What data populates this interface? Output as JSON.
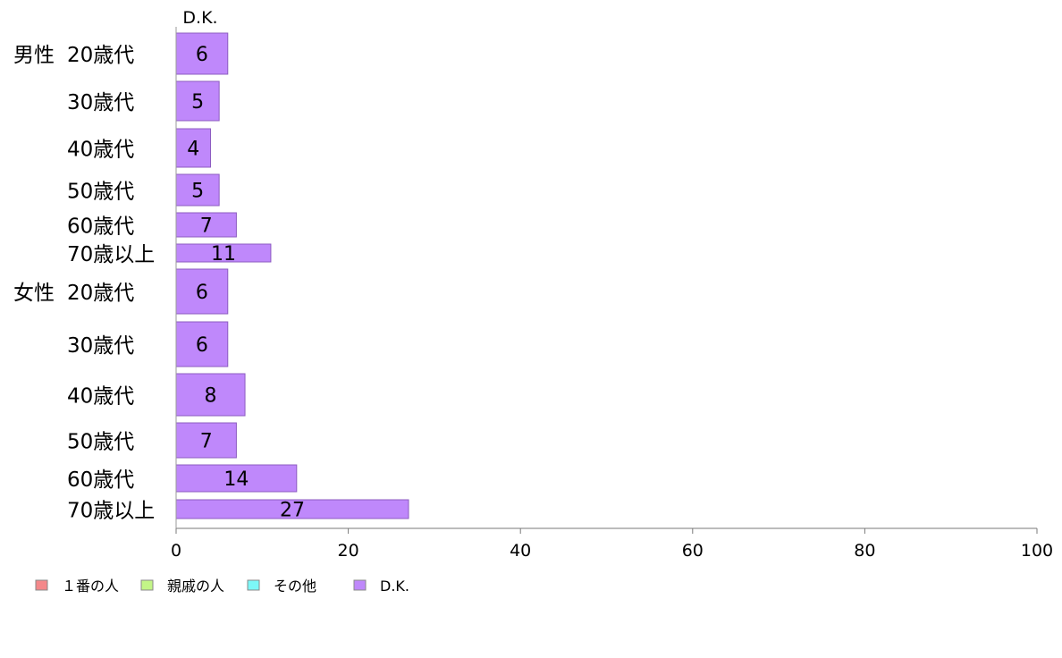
{
  "chart_data": {
    "type": "bar",
    "orientation": "horizontal",
    "stacked": true,
    "title": "D.K.",
    "groups": [
      {
        "label": "男性",
        "categories": [
          "20歳代",
          "30歳代",
          "40歳代",
          "50歳代",
          "60歳代",
          "70歳以上"
        ]
      },
      {
        "label": "女性",
        "categories": [
          "20歳代",
          "30歳代",
          "40歳代",
          "50歳代",
          "60歳代",
          "70歳以上"
        ]
      }
    ],
    "categories": [
      "20歳代",
      "30歳代",
      "40歳代",
      "50歳代",
      "60歳代",
      "70歳以上",
      "20歳代",
      "30歳代",
      "40歳代",
      "50歳代",
      "60歳代",
      "70歳以上"
    ],
    "series": [
      {
        "name": "１番の人",
        "color": "#f4888a",
        "values": [
          0,
          0,
          0,
          0,
          0,
          0,
          0,
          0,
          0,
          0,
          0,
          0
        ]
      },
      {
        "name": "親戚の人",
        "color": "#c3f587",
        "values": [
          0,
          0,
          0,
          0,
          0,
          0,
          0,
          0,
          0,
          0,
          0,
          0
        ]
      },
      {
        "name": "その他",
        "color": "#7cf7f7",
        "values": [
          0,
          0,
          0,
          0,
          0,
          0,
          0,
          0,
          0,
          0,
          0,
          0
        ]
      },
      {
        "name": "D.K.",
        "color": "#bf88fb",
        "values": [
          6,
          5,
          4,
          5,
          7,
          11,
          6,
          6,
          8,
          7,
          14,
          27
        ]
      }
    ],
    "data_labels": [
      "6",
      "5",
      "4",
      "5",
      "7",
      "11",
      "6",
      "6",
      "8",
      "7",
      "14",
      "27"
    ],
    "xlim": [
      0,
      100
    ],
    "xticks": [
      "0",
      "20",
      "40",
      "60",
      "80",
      "100"
    ],
    "grid": false,
    "legend_position": "bottom-left"
  }
}
